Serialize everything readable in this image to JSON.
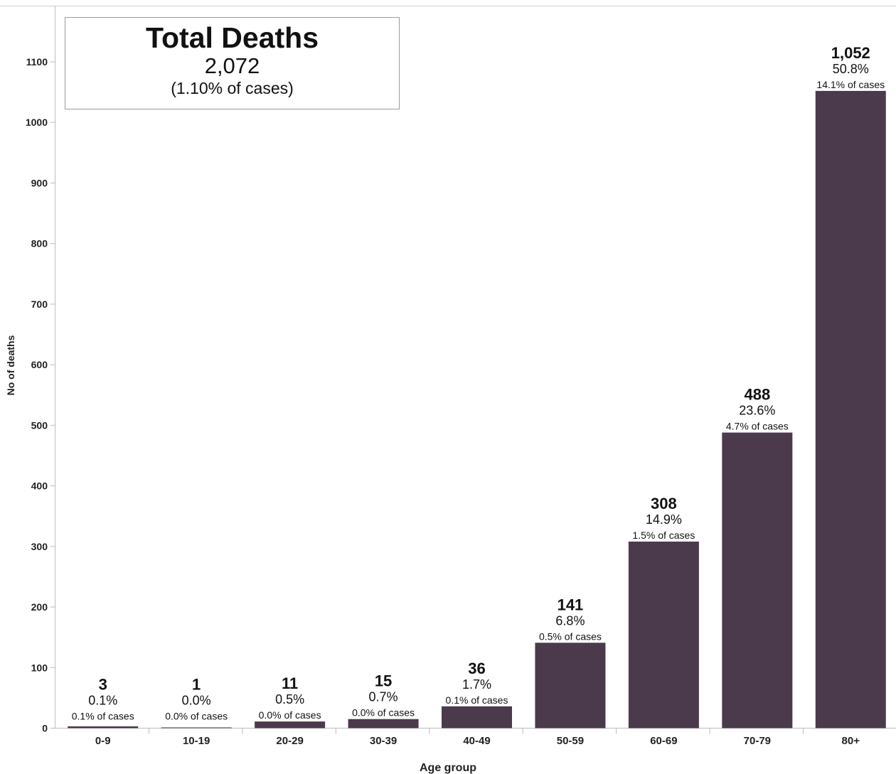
{
  "summary": {
    "title": "Total Deaths",
    "value": "2,072",
    "subtitle": "(1.10% of cases)"
  },
  "chart_data": {
    "type": "bar",
    "xlabel": "Age group",
    "ylabel": "No of deaths",
    "ylim": [
      0,
      1100
    ],
    "yticks": [
      0,
      100,
      200,
      300,
      400,
      500,
      600,
      700,
      800,
      900,
      1000,
      1100
    ],
    "grid": false,
    "bar_color": "#4b3a4c",
    "categories": [
      "0-9",
      "10-19",
      "20-29",
      "30-39",
      "40-49",
      "50-59",
      "60-69",
      "70-79",
      "80+"
    ],
    "values": [
      3,
      1,
      11,
      15,
      36,
      141,
      308,
      488,
      1052
    ],
    "value_labels": [
      "3",
      "1",
      "11",
      "15",
      "36",
      "141",
      "308",
      "488",
      "1,052"
    ],
    "share_labels": [
      "0.1%",
      "0.0%",
      "0.5%",
      "0.7%",
      "1.7%",
      "6.8%",
      "14.9%",
      "23.6%",
      "50.8%"
    ],
    "case_labels": [
      "0.1% of cases",
      "0.0% of cases",
      "0.0% of cases",
      "0.0% of cases",
      "0.1% of cases",
      "0.5% of cases",
      "1.5% of cases",
      "4.7% of cases",
      "14.1% of cases"
    ]
  }
}
